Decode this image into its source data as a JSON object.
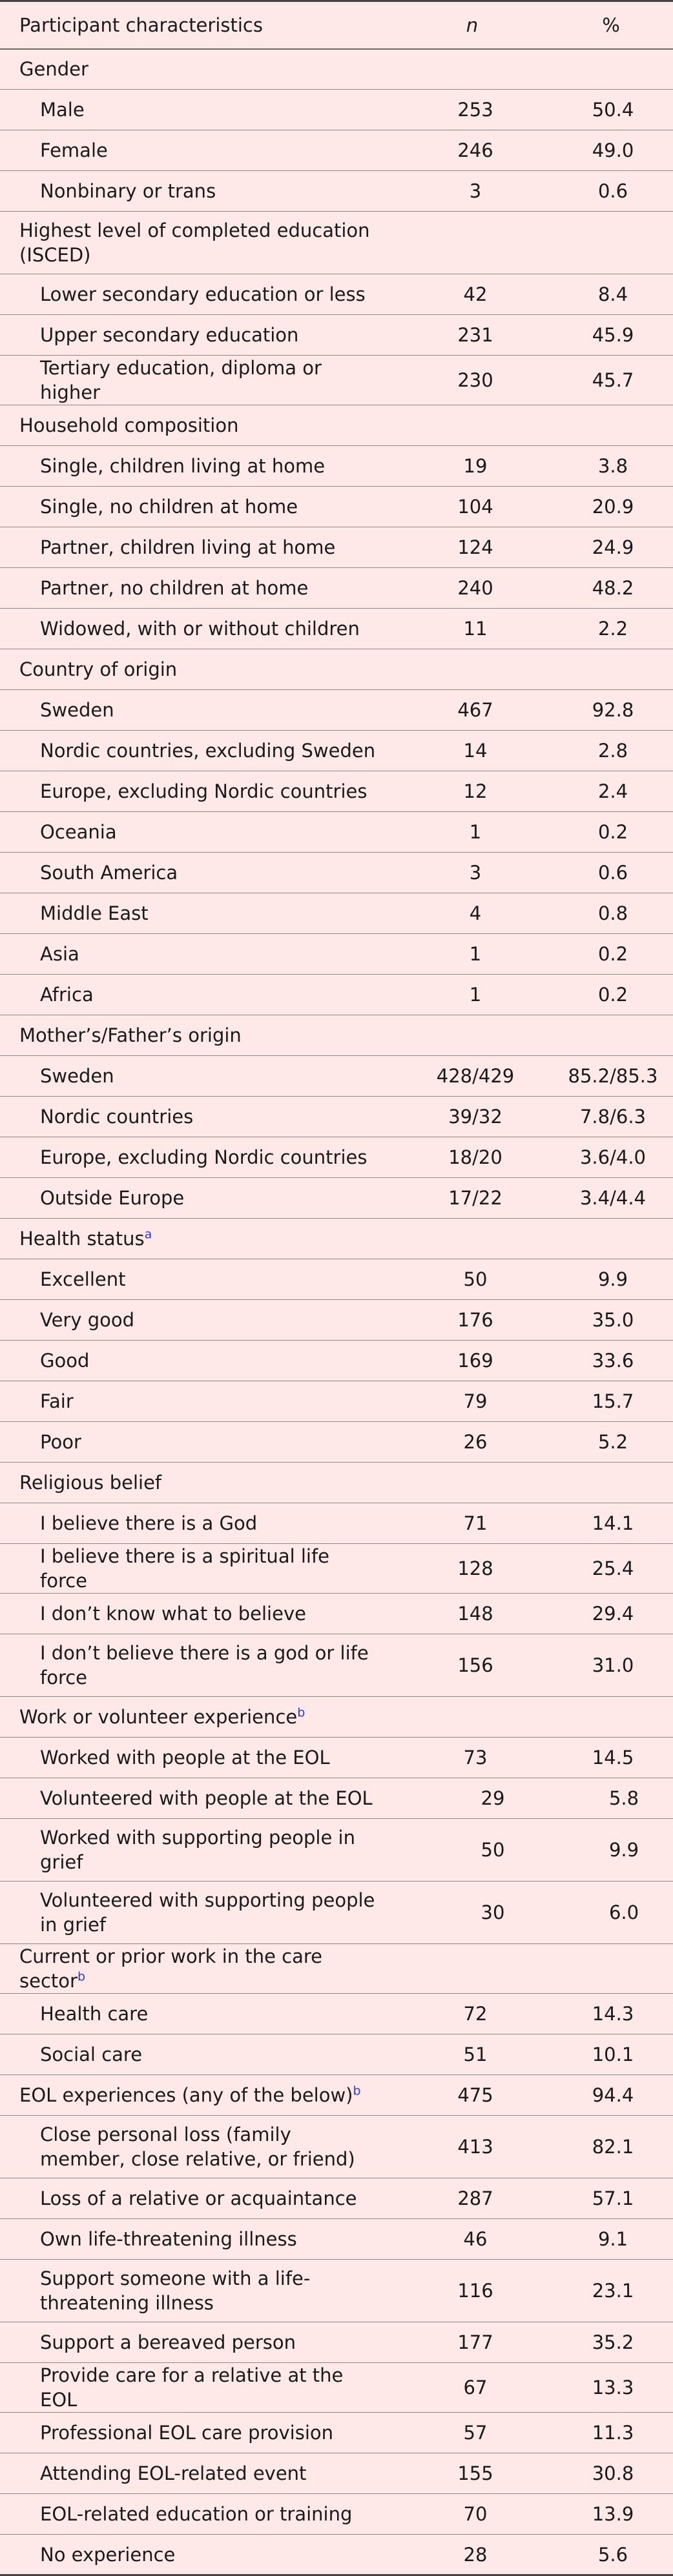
{
  "header": {
    "characteristic": "Participant characteristics",
    "n": "n",
    "percent": "%"
  },
  "sections": [
    {
      "title": "Gender",
      "sup": "",
      "rows": [
        {
          "label": "Male",
          "n": "253",
          "pct": "50.4"
        },
        {
          "label": "Female",
          "n": "246",
          "pct": "49.0"
        },
        {
          "label": "Nonbinary or trans",
          "n": "3",
          "pct": "0.6"
        }
      ]
    },
    {
      "title": "Highest level of completed education (ISCED)",
      "sup": "",
      "rows": [
        {
          "label": "Lower secondary education or less",
          "n": "42",
          "pct": "8.4"
        },
        {
          "label": "Upper secondary education",
          "n": "231",
          "pct": "45.9"
        },
        {
          "label": "Tertiary education, diploma or higher",
          "n": "230",
          "pct": "45.7"
        }
      ]
    },
    {
      "title": "Household composition",
      "sup": "",
      "rows": [
        {
          "label": "Single, children living at home",
          "n": "19",
          "pct": "3.8"
        },
        {
          "label": "Single, no children at home",
          "n": "104",
          "pct": "20.9"
        },
        {
          "label": "Partner, children living at home",
          "n": "124",
          "pct": "24.9"
        },
        {
          "label": "Partner, no children at home",
          "n": "240",
          "pct": "48.2"
        },
        {
          "label": "Widowed, with or without children",
          "n": "11",
          "pct": "2.2"
        }
      ]
    },
    {
      "title": "Country of origin",
      "sup": "",
      "rows": [
        {
          "label": "Sweden",
          "n": "467",
          "pct": "92.8"
        },
        {
          "label": "Nordic countries, excluding Sweden",
          "n": "14",
          "pct": "2.8"
        },
        {
          "label": "Europe, excluding Nordic countries",
          "n": "12",
          "pct": "2.4"
        },
        {
          "label": "Oceania",
          "n": "1",
          "pct": "0.2"
        },
        {
          "label": "South America",
          "n": "3",
          "pct": "0.6"
        },
        {
          "label": "Middle East",
          "n": "4",
          "pct": "0.8"
        },
        {
          "label": "Asia",
          "n": "1",
          "pct": "0.2"
        },
        {
          "label": "Africa",
          "n": "1",
          "pct": "0.2"
        }
      ]
    },
    {
      "title": "Mother’s/Father’s origin",
      "sup": "",
      "rows": [
        {
          "label": "Sweden",
          "n": "428/429",
          "pct": "85.2/85.3"
        },
        {
          "label": "Nordic countries",
          "n": "39/32",
          "pct": "7.8/6.3"
        },
        {
          "label": "Europe, excluding Nordic countries",
          "n": "18/20",
          "pct": "3.6/4.0"
        },
        {
          "label": "Outside Europe",
          "n": "17/22",
          "pct": "3.4/4.4"
        }
      ]
    },
    {
      "title": "Health status",
      "sup": "a",
      "rows": [
        {
          "label": "Excellent",
          "n": "50",
          "pct": "9.9"
        },
        {
          "label": "Very good",
          "n": "176",
          "pct": "35.0"
        },
        {
          "label": "Good",
          "n": "169",
          "pct": "33.6"
        },
        {
          "label": "Fair",
          "n": "79",
          "pct": "15.7"
        },
        {
          "label": "Poor",
          "n": "26",
          "pct": "5.2"
        }
      ]
    },
    {
      "title": "Religious belief",
      "sup": "",
      "rows": [
        {
          "label": "I believe there is a God",
          "n": "71",
          "pct": "14.1"
        },
        {
          "label": "I believe there is a spiritual life force",
          "n": "128",
          "pct": "25.4"
        },
        {
          "label": "I don’t know what to believe",
          "n": "148",
          "pct": "29.4"
        },
        {
          "label": "I don’t believe there is a god or life force",
          "n": "156",
          "pct": "31.0"
        }
      ]
    },
    {
      "title": "Work or volunteer experience",
      "sup": "b",
      "rows": [
        {
          "label": "Worked with people at the EOL",
          "n": "73",
          "pct": "14.5"
        },
        {
          "label": "Volunteered with people at the EOL",
          "n": "29",
          "pct": "5.8",
          "offset": true
        },
        {
          "label": "Worked with supporting people in grief",
          "n": "50",
          "pct": "9.9",
          "offset": true
        },
        {
          "label": "Volunteered with supporting people in grief",
          "n": "30",
          "pct": "6.0",
          "offset": true
        }
      ]
    },
    {
      "title": "Current or prior work in the care sector",
      "sup": "b",
      "rows": [
        {
          "label": "Health care",
          "n": "72",
          "pct": "14.3"
        },
        {
          "label": "Social care",
          "n": "51",
          "pct": "10.1"
        }
      ]
    },
    {
      "title": "EOL experiences (any of the below)",
      "sup": "b",
      "n": "475",
      "pct": "94.4",
      "rows": [
        {
          "label": "Close personal loss (family member, close relative, or friend)",
          "n": "413",
          "pct": "82.1"
        },
        {
          "label": "Loss of a relative or acquaintance",
          "n": "287",
          "pct": "57.1"
        },
        {
          "label": "Own life-threatening illness",
          "n": "46",
          "pct": "9.1"
        },
        {
          "label": "Support someone with a life-threatening illness",
          "n": "116",
          "pct": "23.1"
        },
        {
          "label": "Support a bereaved person",
          "n": "177",
          "pct": "35.2"
        },
        {
          "label": "Provide care for a relative at the EOL",
          "n": "67",
          "pct": "13.3"
        },
        {
          "label": "Professional EOL care provision",
          "n": "57",
          "pct": "11.3"
        },
        {
          "label": "Attending EOL-related event",
          "n": "155",
          "pct": "30.8"
        },
        {
          "label": "EOL-related education or training",
          "n": "70",
          "pct": "13.9"
        },
        {
          "label": "No experience",
          "n": "28",
          "pct": "5.6"
        }
      ]
    }
  ]
}
